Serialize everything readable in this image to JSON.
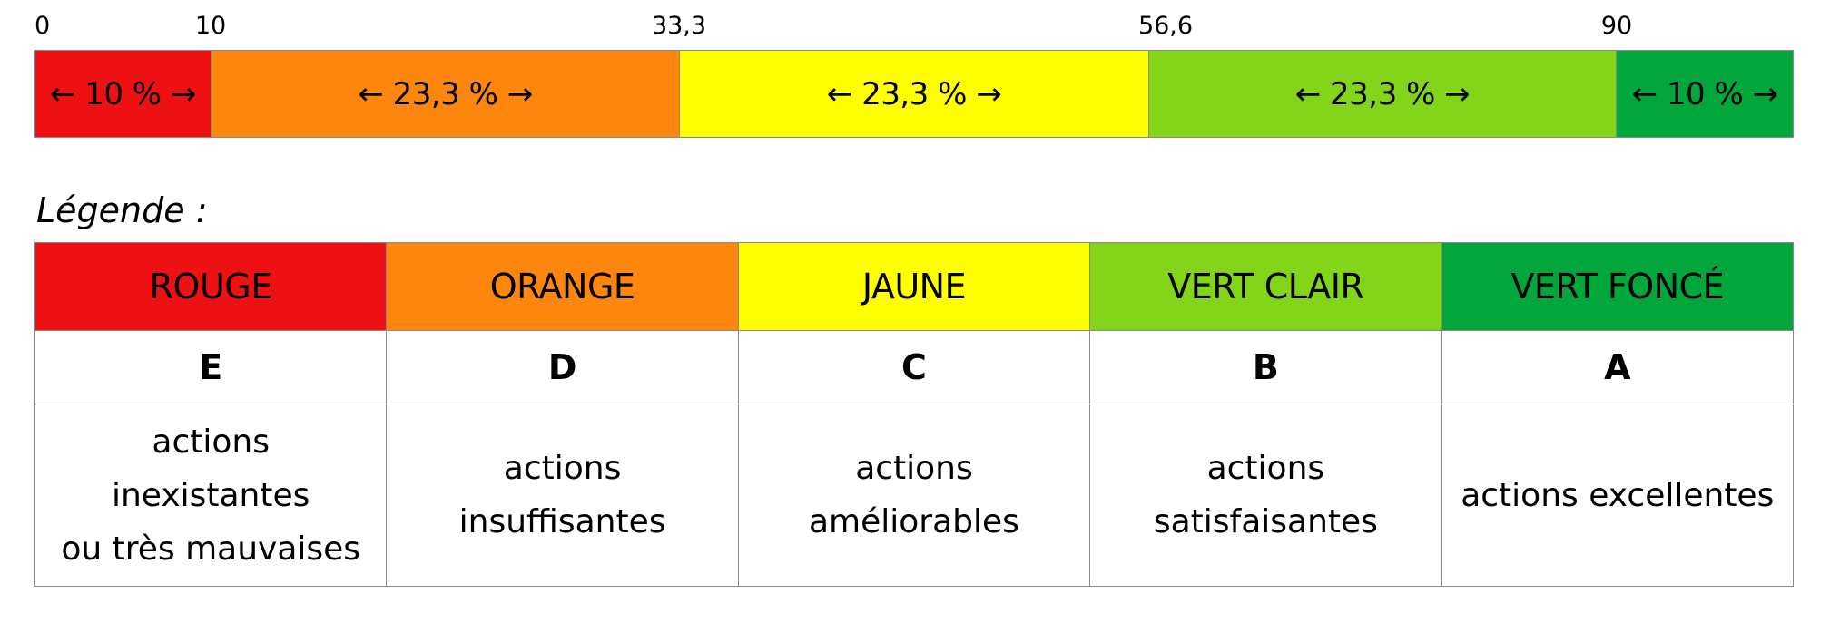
{
  "scale": {
    "ticks": [
      "0",
      "10",
      "33,3",
      "56,6",
      "90"
    ],
    "segments": [
      {
        "label": "← 10 % →",
        "share": 10,
        "color": "#EE1113"
      },
      {
        "label": "← 23,3 % →",
        "share": 23.3,
        "color": "#FD870E"
      },
      {
        "label": "← 23,3 % →",
        "share": 23.3,
        "color": "#FFFF00"
      },
      {
        "label": "← 23,3 % →",
        "share": 23.3,
        "color": "#82D519"
      },
      {
        "label": "← 10 % →",
        "share": 10,
        "color": "#03A63A"
      }
    ]
  },
  "legend": {
    "title": "Légende :",
    "columns": [
      {
        "color_name": "ROUGE",
        "grade": "E",
        "description": [
          "actions",
          "inexistantes",
          "ou très mauvaises"
        ],
        "color": "#EE1113"
      },
      {
        "color_name": "ORANGE",
        "grade": "D",
        "description": [
          "actions",
          "insuffisantes"
        ],
        "color": "#FD870E"
      },
      {
        "color_name": "JAUNE",
        "grade": "C",
        "description": [
          "actions",
          "améliorables"
        ],
        "color": "#FFFF00"
      },
      {
        "color_name": "VERT CLAIR",
        "grade": "B",
        "description": [
          "actions",
          "satisfaisantes"
        ],
        "color": "#82D519"
      },
      {
        "color_name": "VERT FONCÉ",
        "grade": "A",
        "description": [
          "actions excellentes"
        ],
        "color": "#03A63A"
      }
    ]
  }
}
